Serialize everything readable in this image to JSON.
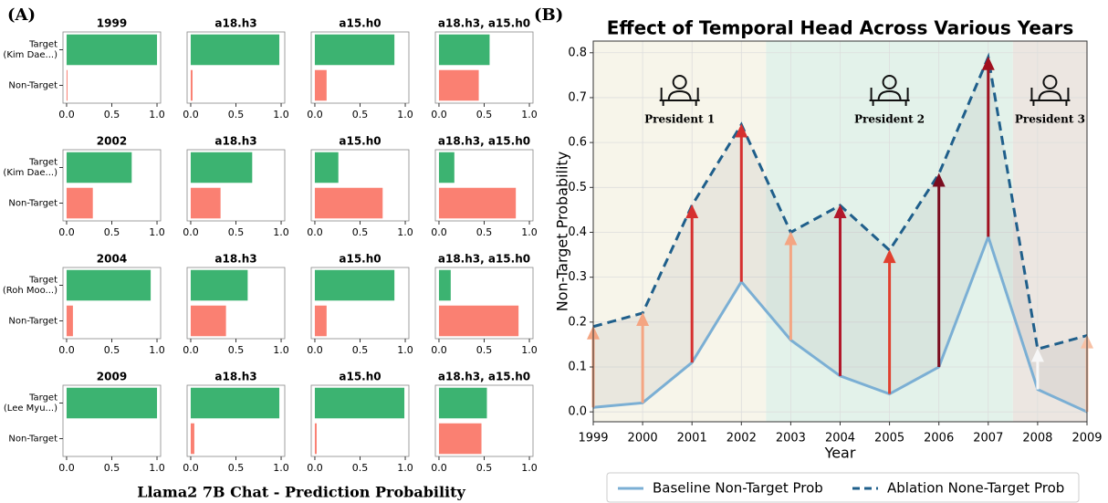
{
  "panel_labels": [
    "(A)",
    "(B)"
  ],
  "panel_a_caption": "Llama2 7B Chat - Prediction Probability",
  "chart_data": [
    {
      "type": "barh",
      "title": "1999",
      "categories": [
        "Target (Kim Dae...)",
        "Non-Target"
      ],
      "values": [
        1.0,
        0.01
      ],
      "colors": [
        "#3cb371",
        "#fa8072"
      ],
      "xlim": [
        -0.04,
        1.04
      ],
      "xticks": [
        {
          "value": 0,
          "label": "0.0"
        },
        {
          "value": 0.5,
          "label": "0.5"
        },
        {
          "value": 1,
          "label": "1.0"
        }
      ]
    },
    {
      "type": "barh",
      "title": "a18.h3",
      "categories": [
        null,
        null
      ],
      "values": [
        0.98,
        0.02
      ],
      "colors": [
        "#3cb371",
        "#fa8072"
      ],
      "xlim": [
        -0.04,
        1.04
      ],
      "xticks": [
        {
          "value": 0,
          "label": "0.0"
        },
        {
          "value": 0.5,
          "label": "0.5"
        },
        {
          "value": 1,
          "label": "1.0"
        }
      ]
    },
    {
      "type": "barh",
      "title": "a15.h0",
      "categories": [
        null,
        null
      ],
      "values": [
        0.88,
        0.13
      ],
      "colors": [
        "#3cb371",
        "#fa8072"
      ],
      "xlim": [
        -0.04,
        1.04
      ],
      "xticks": [
        {
          "value": 0,
          "label": "0.0"
        },
        {
          "value": 0.5,
          "label": "0.5"
        },
        {
          "value": 1,
          "label": "1.0"
        }
      ]
    },
    {
      "type": "barh",
      "title": "a18.h3, a15.h0",
      "categories": [
        null,
        null
      ],
      "values": [
        0.56,
        0.44
      ],
      "colors": [
        "#3cb371",
        "#fa8072"
      ],
      "xlim": [
        -0.04,
        1.04
      ],
      "xticks": [
        {
          "value": 0,
          "label": "0.0"
        },
        {
          "value": 0.5,
          "label": "0.5"
        },
        {
          "value": 1,
          "label": "1.0"
        }
      ]
    },
    {
      "type": "barh",
      "title": "2002",
      "categories": [
        "Target (Kim Dae...)",
        "Non-Target"
      ],
      "values": [
        0.72,
        0.29
      ],
      "colors": [
        "#3cb371",
        "#fa8072"
      ],
      "xlim": [
        -0.04,
        1.04
      ],
      "xticks": [
        {
          "value": 0,
          "label": "0.0"
        },
        {
          "value": 0.5,
          "label": "0.5"
        },
        {
          "value": 1,
          "label": "1.0"
        }
      ]
    },
    {
      "type": "barh",
      "title": "a18.h3",
      "categories": [
        null,
        null
      ],
      "values": [
        0.68,
        0.33
      ],
      "colors": [
        "#3cb371",
        "#fa8072"
      ],
      "xlim": [
        -0.04,
        1.04
      ],
      "xticks": [
        {
          "value": 0,
          "label": "0.0"
        },
        {
          "value": 0.5,
          "label": "0.5"
        },
        {
          "value": 1,
          "label": "1.0"
        }
      ]
    },
    {
      "type": "barh",
      "title": "a15.h0",
      "categories": [
        null,
        null
      ],
      "values": [
        0.26,
        0.75
      ],
      "colors": [
        "#3cb371",
        "#fa8072"
      ],
      "xlim": [
        -0.04,
        1.04
      ],
      "xticks": [
        {
          "value": 0,
          "label": "0.0"
        },
        {
          "value": 0.5,
          "label": "0.5"
        },
        {
          "value": 1,
          "label": "1.0"
        }
      ]
    },
    {
      "type": "barh",
      "title": "a18.h3, a15.h0",
      "categories": [
        null,
        null
      ],
      "values": [
        0.17,
        0.85
      ],
      "colors": [
        "#3cb371",
        "#fa8072"
      ],
      "xlim": [
        -0.04,
        1.04
      ],
      "xticks": [
        {
          "value": 0,
          "label": "0.0"
        },
        {
          "value": 0.5,
          "label": "0.5"
        },
        {
          "value": 1,
          "label": "1.0"
        }
      ]
    },
    {
      "type": "barh",
      "title": "2004",
      "categories": [
        "Target (Roh Moo...)",
        "Non-Target"
      ],
      "values": [
        0.93,
        0.07
      ],
      "colors": [
        "#3cb371",
        "#fa8072"
      ],
      "xlim": [
        -0.04,
        1.04
      ],
      "xticks": [
        {
          "value": 0,
          "label": "0.0"
        },
        {
          "value": 0.5,
          "label": "0.5"
        },
        {
          "value": 1,
          "label": "1.0"
        }
      ]
    },
    {
      "type": "barh",
      "title": "a18.h3",
      "categories": [
        null,
        null
      ],
      "values": [
        0.63,
        0.39
      ],
      "colors": [
        "#3cb371",
        "#fa8072"
      ],
      "xlim": [
        -0.04,
        1.04
      ],
      "xticks": [
        {
          "value": 0,
          "label": "0.0"
        },
        {
          "value": 0.5,
          "label": "0.5"
        },
        {
          "value": 1,
          "label": "1.0"
        }
      ]
    },
    {
      "type": "barh",
      "title": "a15.h0",
      "categories": [
        null,
        null
      ],
      "values": [
        0.88,
        0.13
      ],
      "colors": [
        "#3cb371",
        "#fa8072"
      ],
      "xlim": [
        -0.04,
        1.04
      ],
      "xticks": [
        {
          "value": 0,
          "label": "0.0"
        },
        {
          "value": 0.5,
          "label": "0.5"
        },
        {
          "value": 1,
          "label": "1.0"
        }
      ]
    },
    {
      "type": "barh",
      "title": "a18.h3, a15.h0",
      "categories": [
        null,
        null
      ],
      "values": [
        0.13,
        0.88
      ],
      "colors": [
        "#3cb371",
        "#fa8072"
      ],
      "xlim": [
        -0.04,
        1.04
      ],
      "xticks": [
        {
          "value": 0,
          "label": "0.0"
        },
        {
          "value": 0.5,
          "label": "0.5"
        },
        {
          "value": 1,
          "label": "1.0"
        }
      ]
    },
    {
      "type": "barh",
      "title": "2009",
      "categories": [
        "Target (Lee Myu...)",
        "Non-Target"
      ],
      "values": [
        1.0,
        0.0
      ],
      "colors": [
        "#3cb371",
        "#fa8072"
      ],
      "xlim": [
        -0.04,
        1.04
      ],
      "xticks": [
        {
          "value": 0,
          "label": "0.0"
        },
        {
          "value": 0.5,
          "label": "0.5"
        },
        {
          "value": 1,
          "label": "1.0"
        }
      ]
    },
    {
      "type": "barh",
      "title": "a18.h3",
      "categories": [
        null,
        null
      ],
      "values": [
        0.98,
        0.04
      ],
      "colors": [
        "#3cb371",
        "#fa8072"
      ],
      "xlim": [
        -0.04,
        1.04
      ],
      "xticks": [
        {
          "value": 0,
          "label": "0.0"
        },
        {
          "value": 0.5,
          "label": "0.5"
        },
        {
          "value": 1,
          "label": "1.0"
        }
      ]
    },
    {
      "type": "barh",
      "title": "a15.h0",
      "categories": [
        null,
        null
      ],
      "values": [
        0.99,
        0.02
      ],
      "colors": [
        "#3cb371",
        "#fa8072"
      ],
      "xlim": [
        -0.04,
        1.04
      ],
      "xticks": [
        {
          "value": 0,
          "label": "0.0"
        },
        {
          "value": 0.5,
          "label": "0.5"
        },
        {
          "value": 1,
          "label": "1.0"
        }
      ]
    },
    {
      "type": "barh",
      "title": "a18.h3, a15.h0",
      "categories": [
        null,
        null
      ],
      "values": [
        0.53,
        0.47
      ],
      "colors": [
        "#3cb371",
        "#fa8072"
      ],
      "xlim": [
        -0.04,
        1.04
      ],
      "xticks": [
        {
          "value": 0,
          "label": "0.0"
        },
        {
          "value": 0.5,
          "label": "0.5"
        },
        {
          "value": 1,
          "label": "1.0"
        }
      ]
    },
    {
      "type": "line",
      "title": "Effect of Temporal Head Across Various Years",
      "x_label": "Year",
      "y_label": "Non-Target Probability",
      "x": [
        1999,
        2000,
        2001,
        2002,
        2003,
        2004,
        2005,
        2006,
        2007,
        2008,
        2009
      ],
      "series": [
        {
          "name": "Baseline Non-Target Prob",
          "color": "#7bafd4",
          "dash": false,
          "values": [
            0.01,
            0.02,
            0.11,
            0.29,
            0.16,
            0.08,
            0.04,
            0.1,
            0.39,
            0.05,
            0.0
          ]
        },
        {
          "name": "Ablation None-Target Prob",
          "color": "#1f5f8b",
          "dash": true,
          "values": [
            0.19,
            0.22,
            0.46,
            0.64,
            0.4,
            0.46,
            0.36,
            0.53,
            0.79,
            0.14,
            0.17
          ]
        }
      ],
      "arrow_colors": [
        "#f4a582",
        "#f4a582",
        "#d6302f",
        "#d6302f",
        "#f4a582",
        "#b2182b",
        "#e0402f",
        "#7a0c1f",
        "#a0101f",
        "#f7f7f7",
        "#f8c1a5"
      ],
      "regions": [
        {
          "start": 1999,
          "end": 2002.5,
          "label": "President 1",
          "color": "#f7f5ea"
        },
        {
          "start": 2002.5,
          "end": 2007.5,
          "label": "President 2",
          "color": "#e3f2ea"
        },
        {
          "start": 2007.5,
          "end": 2009,
          "label": "President 3",
          "color": "#ece6e1"
        }
      ],
      "xlim": [
        1999,
        2009
      ],
      "xticks": [
        1999,
        2000,
        2001,
        2002,
        2003,
        2004,
        2005,
        2006,
        2007,
        2008,
        2009
      ],
      "ylim": [
        -0.022,
        0.826
      ],
      "yticks": [
        {
          "value": 0,
          "label": "0.0"
        },
        {
          "value": 0.1,
          "label": "0.1"
        },
        {
          "value": 0.2,
          "label": "0.2"
        },
        {
          "value": 0.3,
          "label": "0.3"
        },
        {
          "value": 0.4,
          "label": "0.4"
        },
        {
          "value": 0.5,
          "label": "0.5"
        },
        {
          "value": 0.6,
          "label": "0.6"
        },
        {
          "value": 0.7,
          "label": "0.7"
        },
        {
          "value": 0.8,
          "label": "0.8"
        }
      ],
      "grid": true,
      "legend": "bottom"
    }
  ]
}
